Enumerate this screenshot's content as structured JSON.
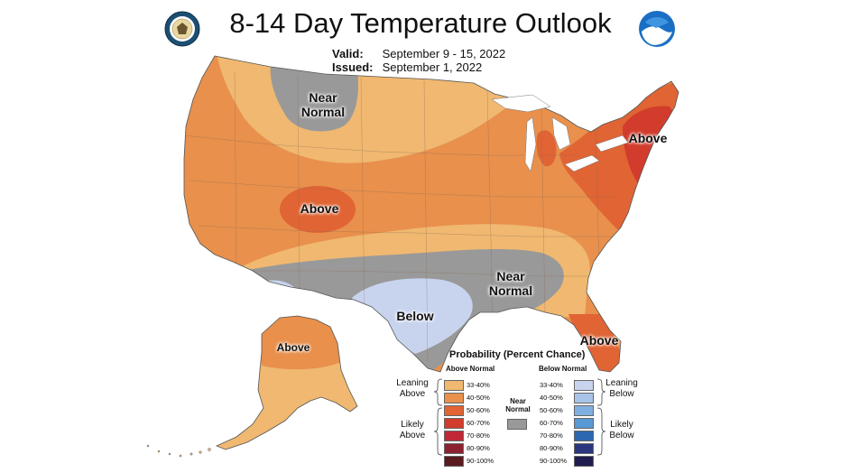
{
  "title": "8-14 Day Temperature Outlook",
  "valid_label": "Valid:",
  "valid_value": "September 9 - 15, 2022",
  "issued_label": "Issued:",
  "issued_value": "September 1, 2022",
  "map_labels": {
    "near_normal_north": "Near\nNormal",
    "above_central": "Above",
    "above_northeast": "Above",
    "near_normal_south": "Near\nNormal",
    "below_texas": "Below",
    "above_florida": "Above",
    "above_alaska": "Above"
  },
  "legend": {
    "title": "Probability (Percent Chance)",
    "above_header": "Above Normal",
    "below_header": "Below Normal",
    "near_normal": "Near\nNormal",
    "leaning_above": "Leaning\nAbove",
    "likely_above": "Likely\nAbove",
    "leaning_below": "Leaning\nBelow",
    "likely_below": "Likely\nBelow",
    "above": [
      {
        "label": "33-40%",
        "color": "#f0b870"
      },
      {
        "label": "40-50%",
        "color": "#e8904c"
      },
      {
        "label": "50-60%",
        "color": "#e06434"
      },
      {
        "label": "60-70%",
        "color": "#d23c2c"
      },
      {
        "label": "70-80%",
        "color": "#c02838"
      },
      {
        "label": "80-90%",
        "color": "#8c2230"
      },
      {
        "label": "90-100%",
        "color": "#5a1a1e"
      }
    ],
    "below": [
      {
        "label": "33-40%",
        "color": "#c8d4ee"
      },
      {
        "label": "40-50%",
        "color": "#a8c4e8"
      },
      {
        "label": "50-60%",
        "color": "#80b0e0"
      },
      {
        "label": "60-70%",
        "color": "#5898d4"
      },
      {
        "label": "70-80%",
        "color": "#2c68b0"
      },
      {
        "label": "80-90%",
        "color": "#2a3680"
      },
      {
        "label": "90-100%",
        "color": "#201c50"
      }
    ],
    "near_color": "#999999"
  },
  "colors": {
    "above_33_40": "#f0b870",
    "above_40_50": "#e8904c",
    "above_50_60": "#e06434",
    "above_60_70": "#d23c2c",
    "near": "#999999",
    "below_33_40": "#c8d4ee",
    "noaa_blue": "#1a6fc4"
  }
}
